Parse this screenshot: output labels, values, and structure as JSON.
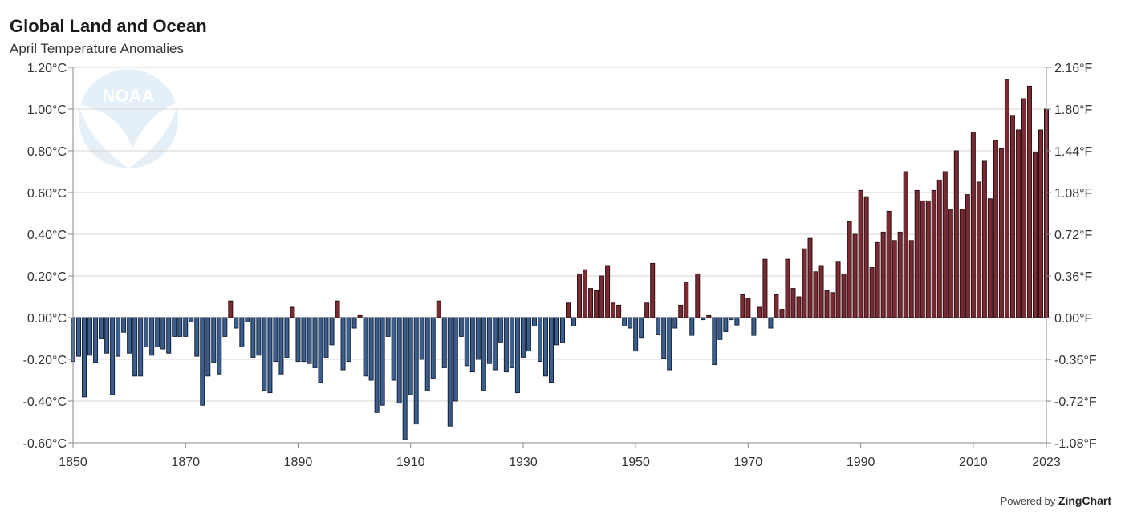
{
  "chart_data": {
    "type": "bar",
    "title": "Global Land and Ocean",
    "subtitle": "April Temperature Anomalies",
    "xlabel": "",
    "ylabel": "",
    "x_start": 1850,
    "x_end": 2023,
    "x_ticks": [
      "1850",
      "1870",
      "1890",
      "1910",
      "1930",
      "1950",
      "1970",
      "1990",
      "2010",
      "2023"
    ],
    "ylim": [
      -0.6,
      1.2
    ],
    "y_ticks_left": [
      "1.20°C",
      "1.00°C",
      "0.80°C",
      "0.60°C",
      "0.40°C",
      "0.20°C",
      "0.00°C",
      "-0.20°C",
      "-0.40°C",
      "-0.60°C"
    ],
    "y_ticks_right": [
      "2.16°F",
      "1.80°F",
      "1.44°F",
      "1.08°F",
      "0.72°F",
      "0.36°F",
      "0.00°F",
      "-0.36°F",
      "-0.72°F",
      "-1.08°F"
    ],
    "grid": true,
    "colors": {
      "positive": "#7b2a33",
      "negative": "#3b5e8c",
      "positive_stroke": "#2e0f12",
      "negative_stroke": "#13223a"
    },
    "values": [
      -0.21,
      -0.185,
      -0.38,
      -0.18,
      -0.215,
      -0.1,
      -0.17,
      -0.37,
      -0.185,
      -0.07,
      -0.17,
      -0.28,
      -0.28,
      -0.14,
      -0.18,
      -0.14,
      -0.15,
      -0.17,
      -0.09,
      -0.09,
      -0.09,
      -0.02,
      -0.185,
      -0.42,
      -0.28,
      -0.215,
      -0.27,
      -0.09,
      0.08,
      -0.05,
      -0.14,
      -0.02,
      -0.19,
      -0.18,
      -0.35,
      -0.36,
      -0.21,
      -0.27,
      -0.19,
      0.05,
      -0.21,
      -0.21,
      -0.22,
      -0.24,
      -0.31,
      -0.19,
      -0.13,
      0.08,
      -0.25,
      -0.21,
      -0.05,
      0.01,
      -0.28,
      -0.3,
      -0.455,
      -0.42,
      -0.09,
      -0.3,
      -0.41,
      -0.585,
      -0.37,
      -0.51,
      -0.2,
      -0.35,
      -0.29,
      0.08,
      -0.24,
      -0.52,
      -0.4,
      -0.09,
      -0.23,
      -0.26,
      -0.2,
      -0.35,
      -0.22,
      -0.25,
      -0.12,
      -0.26,
      -0.24,
      -0.36,
      -0.19,
      -0.16,
      -0.04,
      -0.21,
      -0.28,
      -0.31,
      -0.13,
      -0.12,
      0.07,
      -0.04,
      0.21,
      0.23,
      0.14,
      0.13,
      0.2,
      0.25,
      0.07,
      0.06,
      -0.04,
      -0.05,
      -0.16,
      -0.095,
      0.07,
      0.26,
      -0.08,
      -0.195,
      -0.25,
      -0.05,
      0.06,
      0.17,
      -0.085,
      0.21,
      -0.01,
      0.01,
      -0.225,
      -0.105,
      -0.067,
      -0.01,
      -0.035,
      0.11,
      0.09,
      -0.085,
      0.05,
      0.28,
      -0.05,
      0.11,
      0.04,
      0.28,
      0.14,
      0.1,
      0.33,
      0.38,
      0.22,
      0.25,
      0.13,
      0.12,
      0.27,
      0.21,
      0.46,
      0.4,
      0.61,
      0.58,
      0.24,
      0.36,
      0.41,
      0.51,
      0.37,
      0.41,
      0.7,
      0.37,
      0.61,
      0.56,
      0.56,
      0.61,
      0.66,
      0.7,
      0.52,
      0.8,
      0.52,
      0.59,
      0.89,
      0.65,
      0.75,
      0.57,
      0.85,
      0.81,
      1.14,
      0.97,
      0.9,
      1.05,
      1.11,
      0.79,
      0.9,
      1.0
    ]
  },
  "watermark": {
    "logo_text": "NOAA"
  },
  "footer": {
    "powered_by": "Powered by",
    "brand": "ZingChart"
  }
}
